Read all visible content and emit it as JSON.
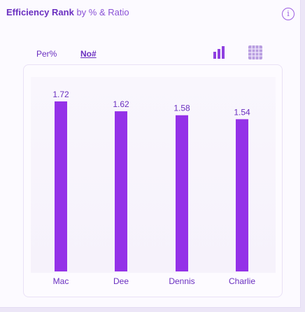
{
  "header": {
    "title_bold": "Efficiency Rank",
    "title_rest": " by % & Ratio",
    "info_icon": "info-circle-icon"
  },
  "toggles": {
    "per_label": "Per%",
    "no_label": "No#",
    "active": "No#"
  },
  "view_icons": [
    "bar-chart-icon",
    "grid-table-icon"
  ],
  "colors": {
    "bar": "#9432e8",
    "text": "#6a2fc0",
    "accent": "#9d5fe2"
  },
  "chart_data": {
    "type": "bar",
    "categories": [
      "Mac",
      "Dee",
      "Dennis",
      "Charlie"
    ],
    "values": [
      1.72,
      1.62,
      1.58,
      1.54
    ],
    "title": "Efficiency Rank by % & Ratio",
    "xlabel": "",
    "ylabel": "",
    "ylim": [
      0,
      1.9
    ],
    "grid": false,
    "legend": "none"
  }
}
